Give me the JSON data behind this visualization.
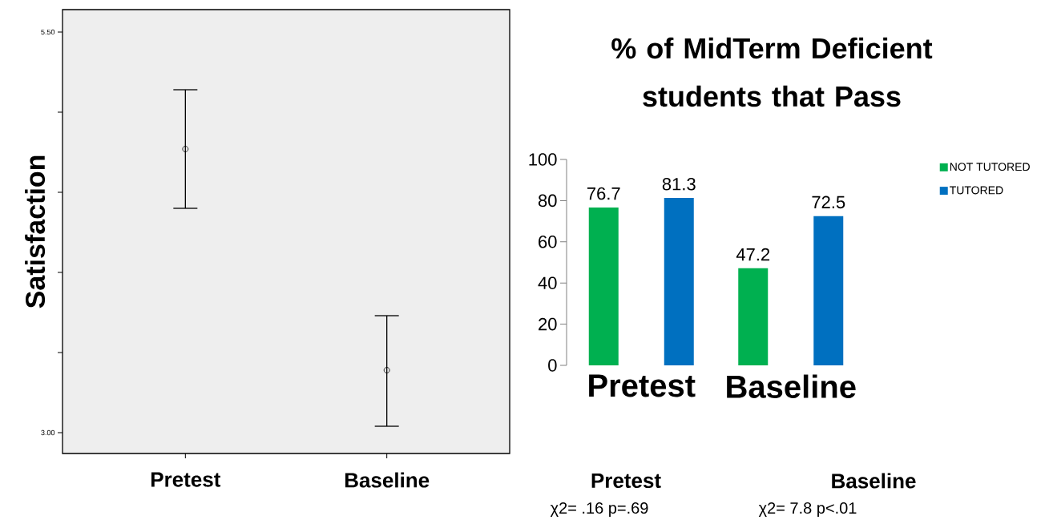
{
  "chart_data": [
    {
      "type": "scatter",
      "ylabel": "Satisfaction",
      "categories": [
        "Pretest",
        "Baseline"
      ],
      "marker": "circle",
      "series": [
        {
          "color": "#000000",
          "values": [
            4.77,
            3.39
          ],
          "errors": [
            [
              4.4,
              5.14
            ],
            [
              3.04,
              3.73
            ]
          ]
        }
      ],
      "ylim": [
        2.87,
        5.64
      ],
      "yticks": [
        {
          "value": 3,
          "label": "3.00"
        },
        {
          "value": 3.5,
          "label": null
        },
        {
          "value": 4,
          "label": null
        },
        {
          "value": 4.5,
          "label": null
        },
        {
          "value": 5,
          "label": null
        },
        {
          "value": 5.5,
          "label": "5.50"
        }
      ]
    },
    {
      "type": "bar",
      "title": "% of MidTerm Deficient students that Pass",
      "categories": [
        "Pretest",
        "Baseline"
      ],
      "series": [
        {
          "name": "NOT TUTORED",
          "color": "#00b050",
          "values": [
            76.7,
            47.2
          ]
        },
        {
          "name": "TUTORED",
          "color": "#0070c0",
          "values": [
            81.3,
            72.5
          ]
        }
      ],
      "ylim": [
        0,
        100
      ],
      "yticks": [
        0,
        20,
        40,
        60,
        80,
        100
      ],
      "data_labels": true,
      "legend": "top right",
      "annotations": [
        "Pretest",
        "Baseline",
        "χ2= .16 p=.69",
        "χ2= 7.8 p<.01"
      ]
    }
  ]
}
